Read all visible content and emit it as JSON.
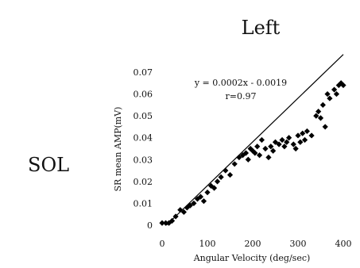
{
  "side_title": "Left",
  "muscle_label": "SOL",
  "chart_data": {
    "type": "scatter",
    "title": "",
    "xlabel": "Angular Velocity (deg/sec)",
    "ylabel": "SR mean AMP(mV)",
    "xlim": [
      0,
      400
    ],
    "ylim": [
      0,
      0.07
    ],
    "xticks": [
      0,
      100,
      200,
      300,
      400
    ],
    "xtick_labels": [
      "0",
      "100",
      "200",
      "300",
      "400"
    ],
    "yticks": [
      0,
      0.01,
      0.02,
      0.03,
      0.04,
      0.05,
      0.06,
      0.07
    ],
    "ytick_labels": [
      "0",
      "0.01",
      "0.02",
      "0.03",
      "0.04",
      "0.05",
      "0.06",
      "0.07"
    ],
    "grid": false,
    "marker_color": "#000000",
    "series": [
      {
        "x": [
          0,
          8,
          15,
          22,
          30,
          40,
          48,
          55,
          62,
          70,
          78,
          85,
          92,
          100,
          108,
          115,
          122,
          130,
          140,
          150,
          160,
          170,
          178,
          185,
          190,
          195,
          200,
          205,
          210,
          215,
          220,
          228,
          235,
          240,
          245,
          250,
          258,
          265,
          270,
          275,
          280,
          290,
          295,
          300,
          305,
          310,
          315,
          320,
          330,
          340,
          345,
          350,
          355,
          360,
          365,
          370,
          380,
          385,
          390,
          395,
          400
        ],
        "y": [
          0.001,
          0.001,
          0.001,
          0.002,
          0.004,
          0.007,
          0.006,
          0.008,
          0.009,
          0.01,
          0.012,
          0.013,
          0.011,
          0.015,
          0.018,
          0.017,
          0.02,
          0.022,
          0.025,
          0.023,
          0.028,
          0.031,
          0.032,
          0.033,
          0.03,
          0.035,
          0.034,
          0.033,
          0.036,
          0.032,
          0.039,
          0.035,
          0.031,
          0.036,
          0.034,
          0.038,
          0.037,
          0.039,
          0.036,
          0.038,
          0.04,
          0.037,
          0.035,
          0.041,
          0.038,
          0.042,
          0.039,
          0.043,
          0.041,
          0.05,
          0.052,
          0.049,
          0.055,
          0.045,
          0.06,
          0.058,
          0.062,
          0.06,
          0.064,
          0.065,
          0.064
        ]
      }
    ],
    "trendline": {
      "slope": 0.0002,
      "intercept": -0.0019
    },
    "annotations": [
      "y = 0.0002x - 0.0019",
      "r=0.97"
    ]
  }
}
